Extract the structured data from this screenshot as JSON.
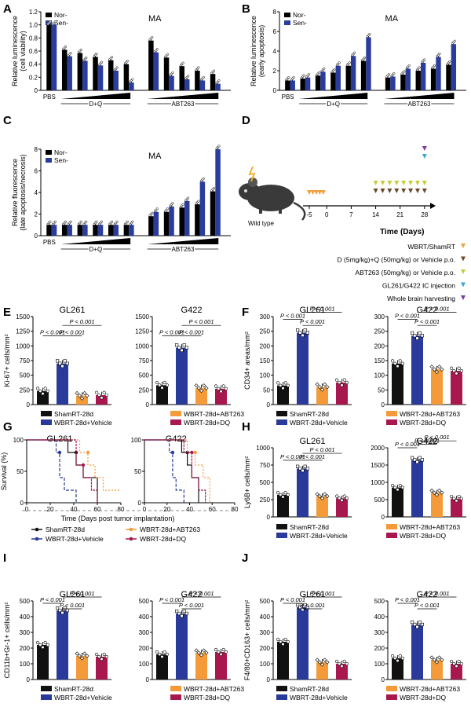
{
  "colors": {
    "nor": "#000000",
    "sen": "#2b3d9c",
    "shamrt": "#111111",
    "vehicle": "#2a3a9a",
    "abt263": "#f59a38",
    "dq": "#a8184f",
    "d": "#6b4a2e",
    "abt_tri": "#c8cc3a",
    "inj": "#3aa7d8",
    "harvest": "#7b3fa0",
    "wbrt": "#f0a040"
  },
  "panels": {
    "A": {
      "letter": "A",
      "title": "MA",
      "ylabel1": "Relative luminescence",
      "ylabel2": "(cell viability)",
      "legend": [
        "Nor-",
        "Sen-"
      ],
      "xlabels": {
        "pbs": "PBS",
        "dq": "D+Q",
        "abt": "ABT263"
      }
    },
    "B": {
      "letter": "B",
      "title": "MA",
      "ylabel1": "Relative luminescence",
      "ylabel2": "(early apoptosis)",
      "legend": [
        "Nor-",
        "Sen-"
      ],
      "xlabels": {
        "pbs": "PBS",
        "dq": "D+Q",
        "abt": "ABT263"
      }
    },
    "C": {
      "letter": "C",
      "title": "MA",
      "ylabel1": "Relative fluorescence",
      "ylabel2": "(late apoptosis/necrosis)",
      "legend": [
        "Nor-",
        "Sen-"
      ],
      "xlabels": {
        "pbs": "PBS",
        "dq": "D+Q",
        "abt": "ABT263"
      }
    },
    "D": {
      "letter": "D",
      "mouse": "Wild type",
      "time_label": "Time (Days)",
      "ticks": [
        "-5",
        "0",
        "7",
        "14",
        "21",
        "28"
      ],
      "key": [
        "WBRT/ShamRT",
        "D (5mg/kg)+Q (50mg/kg) or Vehicle p.o.",
        "ABT263 (50mg/kg) or Vehicle p.o.",
        "GL261/G422 IC injection",
        "Whole brain harvesting"
      ]
    },
    "E": {
      "letter": "E",
      "ylabel": "Ki-67+ cells/mm²"
    },
    "F": {
      "letter": "F",
      "ylabel": "CD34+ areas/mm²"
    },
    "G": {
      "letter": "G",
      "ylabel": "Survival (%)",
      "xlabel": "Time (Days post tumor implantation)"
    },
    "H": {
      "letter": "H",
      "ylabel": "Ly6B+ cells/mm²"
    },
    "I": {
      "letter": "I",
      "ylabel": "CD11b+Gr-1+ cells/mm²"
    },
    "J": {
      "letter": "J",
      "ylabel": "F4/80+CD163+ cells/mm²"
    }
  },
  "group_legend": [
    "ShamRT-28d",
    "WBRT-28d+Vehicle",
    "WBRT-28d+ABT263",
    "WBRT-28d+DQ"
  ],
  "model_titles": [
    "GL261",
    "G422"
  ],
  "pvalue_text": "P < 0.001",
  "chart_data": [
    {
      "type": "bar",
      "id": "A",
      "title": "MA",
      "ylabel": "Relative luminescence (cell viability)",
      "ylim": [
        0,
        1.2
      ],
      "yticks": [
        "0",
        "0.2",
        "0.4",
        "0.6",
        "0.8",
        "1.0",
        "1.2"
      ],
      "categories": [
        "PBS",
        "D+Q 1",
        "D+Q 2",
        "D+Q 3",
        "D+Q 4",
        "D+Q 5",
        "ABT263 1",
        "ABT263 2",
        "ABT263 3",
        "ABT263 4",
        "ABT263 5"
      ],
      "series": [
        {
          "name": "Nor-",
          "values": [
            1.0,
            0.62,
            0.57,
            0.51,
            0.46,
            0.4,
            0.76,
            0.5,
            0.37,
            0.3,
            0.25
          ]
        },
        {
          "name": "Sen-",
          "values": [
            1.0,
            0.52,
            0.45,
            0.38,
            0.3,
            0.12,
            0.58,
            0.22,
            0.17,
            0.15,
            0.1
          ]
        }
      ]
    },
    {
      "type": "bar",
      "id": "B",
      "title": "MA",
      "ylabel": "Relative luminescence (early apoptosis)",
      "ylim": [
        0,
        8
      ],
      "yticks": [
        "0",
        "2",
        "4",
        "6",
        "8"
      ],
      "categories": [
        "PBS",
        "D+Q 1",
        "D+Q 2",
        "D+Q 3",
        "D+Q 4",
        "D+Q 5",
        "ABT263 1",
        "ABT263 2",
        "ABT263 3",
        "ABT263 4",
        "ABT263 5"
      ],
      "series": [
        {
          "name": "Nor-",
          "values": [
            1.0,
            1.2,
            1.5,
            1.8,
            2.5,
            3.0,
            1.3,
            1.6,
            2.0,
            2.2,
            2.6
          ]
        },
        {
          "name": "Sen-",
          "values": [
            1.0,
            1.3,
            1.9,
            2.5,
            3.5,
            5.4,
            1.4,
            2.2,
            2.8,
            3.4,
            4.7
          ]
        }
      ]
    },
    {
      "type": "bar",
      "id": "C",
      "title": "MA",
      "ylabel": "Relative fluorescence (late apoptosis/necrosis)",
      "ylim": [
        0,
        8
      ],
      "yticks": [
        "0",
        "2",
        "4",
        "6",
        "8"
      ],
      "categories": [
        "PBS",
        "D+Q 1",
        "D+Q 2",
        "D+Q 3",
        "D+Q 4",
        "D+Q 5",
        "ABT263 1",
        "ABT263 2",
        "ABT263 3",
        "ABT263 4",
        "ABT263 5"
      ],
      "series": [
        {
          "name": "Nor-",
          "values": [
            1.0,
            1.0,
            1.0,
            1.0,
            1.0,
            1.0,
            1.8,
            2.2,
            2.6,
            2.9,
            4.1
          ]
        },
        {
          "name": "Sen-",
          "values": [
            1.0,
            1.0,
            1.0,
            1.0,
            1.0,
            1.0,
            2.2,
            2.7,
            3.2,
            5.0,
            8.0
          ]
        }
      ]
    },
    {
      "type": "bar",
      "id": "E-GL261",
      "title": "GL261",
      "ylabel": "Ki-67+ cells/mm²",
      "ylim": [
        0,
        1500
      ],
      "yticks": [
        "0",
        "250",
        "500",
        "750",
        "1000",
        "1250",
        "1500"
      ],
      "categories": [
        "ShamRT-28d",
        "WBRT-28d+Vehicle",
        "WBRT-28d+ABT263",
        "WBRT-28d+DQ"
      ],
      "values": [
        230,
        700,
        150,
        160
      ]
    },
    {
      "type": "bar",
      "id": "E-G422",
      "title": "G422",
      "ylabel": "Ki-67+ cells/mm²",
      "ylim": [
        0,
        1500
      ],
      "yticks": [
        "0",
        "250",
        "500",
        "750",
        "1000",
        "1250",
        "1500"
      ],
      "categories": [
        "ShamRT-28d",
        "WBRT-28d+Vehicle",
        "WBRT-28d+ABT263",
        "WBRT-28d+DQ"
      ],
      "values": [
        330,
        970,
        280,
        270
      ]
    },
    {
      "type": "bar",
      "id": "F-GL261",
      "title": "GL261",
      "ylabel": "CD34+ areas/mm²",
      "ylim": [
        0,
        300
      ],
      "yticks": [
        "0",
        "50",
        "100",
        "150",
        "200",
        "250",
        "300"
      ],
      "categories": [
        "ShamRT-28d",
        "WBRT-28d+Vehicle",
        "WBRT-28d+ABT263",
        "WBRT-28d+DQ"
      ],
      "values": [
        65,
        245,
        60,
        75
      ]
    },
    {
      "type": "bar",
      "id": "F-G422",
      "title": "G422",
      "ylabel": "CD34+ areas/mm²",
      "ylim": [
        0,
        300
      ],
      "yticks": [
        "0",
        "50",
        "100",
        "150",
        "200",
        "250",
        "300"
      ],
      "categories": [
        "ShamRT-28d",
        "WBRT-28d+Vehicle",
        "WBRT-28d+ABT263",
        "WBRT-28d+DQ"
      ],
      "values": [
        140,
        235,
        120,
        115
      ]
    },
    {
      "type": "line",
      "id": "G-GL261",
      "title": "GL261",
      "ylabel": "Survival (%)",
      "xlabel": "Time (Days post tumor implantation)",
      "xlim": [
        0,
        80
      ],
      "ylim": [
        0,
        100
      ],
      "xticks": [
        "0",
        "20",
        "40",
        "60",
        "80"
      ],
      "yticks": [
        "0",
        "50",
        "100"
      ],
      "series": [
        {
          "name": "ShamRT-28d",
          "x": [
            0,
            35,
            35,
            42,
            42,
            48,
            48,
            60,
            60
          ],
          "y": [
            100,
            100,
            80,
            80,
            60,
            60,
            40,
            40,
            0
          ]
        },
        {
          "name": "WBRT-28d+Vehicle",
          "x": [
            0,
            25,
            25,
            28,
            28,
            32,
            32,
            42,
            42
          ],
          "y": [
            100,
            100,
            80,
            80,
            40,
            40,
            20,
            20,
            0
          ]
        },
        {
          "name": "WBRT-28d+ABT263",
          "x": [
            0,
            45,
            45,
            52,
            52,
            58,
            58,
            65,
            65,
            80
          ],
          "y": [
            100,
            100,
            80,
            80,
            60,
            60,
            40,
            40,
            20,
            20
          ]
        },
        {
          "name": "WBRT-28d+DQ",
          "x": [
            0,
            42,
            42,
            48,
            48,
            55,
            55,
            60,
            60
          ],
          "y": [
            100,
            100,
            60,
            60,
            40,
            40,
            20,
            20,
            0
          ]
        }
      ]
    },
    {
      "type": "line",
      "id": "G-G422",
      "title": "G422",
      "ylabel": "Survival (%)",
      "xlim": [
        0,
        80
      ],
      "ylim": [
        0,
        100
      ],
      "xticks": [
        "0",
        "20",
        "40",
        "60",
        "80"
      ],
      "yticks": [
        "0",
        "50",
        "100"
      ],
      "series": [
        {
          "name": "ShamRT-28d",
          "x": [
            0,
            33,
            33,
            38,
            38,
            42,
            42,
            48,
            48
          ],
          "y": [
            100,
            100,
            80,
            80,
            60,
            60,
            40,
            40,
            0
          ]
        },
        {
          "name": "WBRT-28d+Vehicle",
          "x": [
            0,
            22,
            22,
            25,
            25,
            28,
            28,
            35,
            35
          ],
          "y": [
            100,
            100,
            80,
            80,
            40,
            40,
            20,
            20,
            0
          ]
        },
        {
          "name": "WBRT-28d+ABT263",
          "x": [
            0,
            38,
            38,
            45,
            45,
            52,
            52,
            58,
            58
          ],
          "y": [
            100,
            100,
            80,
            80,
            60,
            60,
            40,
            40,
            0
          ]
        },
        {
          "name": "WBRT-28d+DQ",
          "x": [
            0,
            35,
            35,
            42,
            42,
            48,
            48,
            54,
            54
          ],
          "y": [
            100,
            100,
            80,
            80,
            40,
            40,
            20,
            20,
            0
          ]
        }
      ]
    },
    {
      "type": "bar",
      "id": "H-GL261",
      "title": "GL261",
      "ylabel": "Ly6B+ cells/mm²",
      "ylim": [
        0,
        1000
      ],
      "yticks": [
        "0",
        "250",
        "500",
        "750",
        "1000"
      ],
      "categories": [
        "ShamRT-28d",
        "WBRT-28d+Vehicle",
        "WBRT-28d+ABT263",
        "WBRT-28d+DQ"
      ],
      "values": [
        320,
        700,
        300,
        270
      ]
    },
    {
      "type": "bar",
      "id": "H-G422",
      "title": "G422",
      "ylabel": "Ly6B+ cells/mm²",
      "ylim": [
        0,
        2000
      ],
      "yticks": [
        "0",
        "500",
        "1000",
        "1500",
        "2000"
      ],
      "categories": [
        "ShamRT-28d",
        "WBRT-28d+Vehicle",
        "WBRT-28d+ABT263",
        "WBRT-28d+DQ"
      ],
      "values": [
        850,
        1650,
        700,
        530
      ]
    },
    {
      "type": "bar",
      "id": "I-GL261",
      "title": "GL261",
      "ylabel": "CD11b+Gr-1+ cells/mm²",
      "ylim": [
        0,
        500
      ],
      "yticks": [
        "0",
        "100",
        "200",
        "300",
        "400",
        "500"
      ],
      "categories": [
        "ShamRT-28d",
        "WBRT-28d+Vehicle",
        "WBRT-28d+ABT263",
        "WBRT-28d+DQ"
      ],
      "values": [
        220,
        440,
        150,
        145
      ]
    },
    {
      "type": "bar",
      "id": "I-G422",
      "title": "G422",
      "ylabel": "CD11b+Gr-1+ cells/mm²",
      "ylim": [
        0,
        500
      ],
      "yticks": [
        "0",
        "100",
        "200",
        "300",
        "400",
        "500"
      ],
      "categories": [
        "ShamRT-28d",
        "WBRT-28d+Vehicle",
        "WBRT-28d+ABT263",
        "WBRT-28d+DQ"
      ],
      "values": [
        160,
        420,
        170,
        175
      ]
    },
    {
      "type": "bar",
      "id": "J-GL261",
      "title": "GL261",
      "ylabel": "F4/80+CD163+ cells/mm²",
      "ylim": [
        0,
        500
      ],
      "yticks": [
        "0",
        "100",
        "200",
        "300",
        "400",
        "500"
      ],
      "categories": [
        "ShamRT-28d",
        "WBRT-28d+Vehicle",
        "WBRT-28d+ABT263",
        "WBRT-28d+DQ"
      ],
      "values": [
        240,
        460,
        110,
        100
      ]
    },
    {
      "type": "bar",
      "id": "J-G422",
      "title": "G422",
      "ylabel": "F4/80+CD163+ cells/mm²",
      "ylim": [
        0,
        500
      ],
      "yticks": [
        "0",
        "100",
        "200",
        "300",
        "400",
        "500"
      ],
      "categories": [
        "ShamRT-28d",
        "WBRT-28d+Vehicle",
        "WBRT-28d+ABT263",
        "WBRT-28d+DQ"
      ],
      "values": [
        135,
        350,
        125,
        100
      ]
    }
  ]
}
